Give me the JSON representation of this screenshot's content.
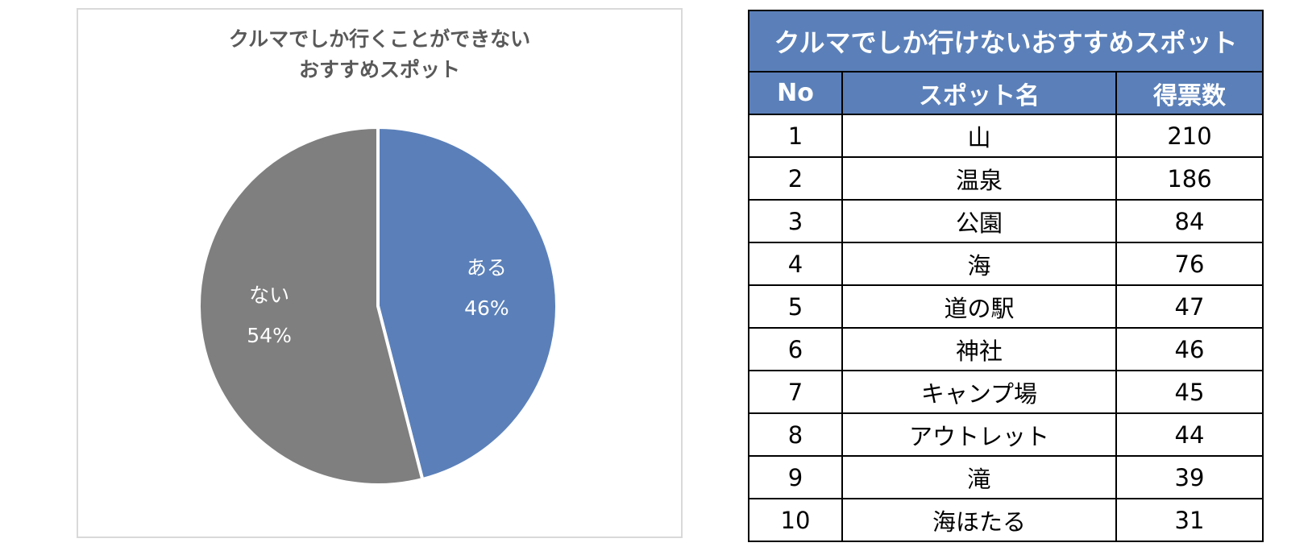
{
  "chart_data": {
    "type": "pie",
    "title_lines": [
      "クルマでしか行くことができない",
      "おすすめスポット"
    ],
    "slices": [
      {
        "label": "ある",
        "value": 46,
        "value_label": "46%",
        "color": "#5b80b9"
      },
      {
        "label": "ない",
        "value": 54,
        "value_label": "54%",
        "color": "#7f7f7f"
      }
    ]
  },
  "table": {
    "title": "クルマでしか行けないおすすめスポット",
    "headers": [
      "No",
      "スポット名",
      "得票数"
    ],
    "rows": [
      {
        "no": "1",
        "name": "山",
        "votes": "210"
      },
      {
        "no": "2",
        "name": "温泉",
        "votes": "186"
      },
      {
        "no": "3",
        "name": "公園",
        "votes": "84"
      },
      {
        "no": "4",
        "name": "海",
        "votes": "76"
      },
      {
        "no": "5",
        "name": "道の駅",
        "votes": "47"
      },
      {
        "no": "6",
        "name": "神社",
        "votes": "46"
      },
      {
        "no": "7",
        "name": "キャンプ場",
        "votes": "45"
      },
      {
        "no": "8",
        "name": "アウトレット",
        "votes": "44"
      },
      {
        "no": "9",
        "name": "滝",
        "votes": "39"
      },
      {
        "no": "10",
        "name": "海ほたる",
        "votes": "31"
      }
    ],
    "header_color": "#5b80b9"
  }
}
